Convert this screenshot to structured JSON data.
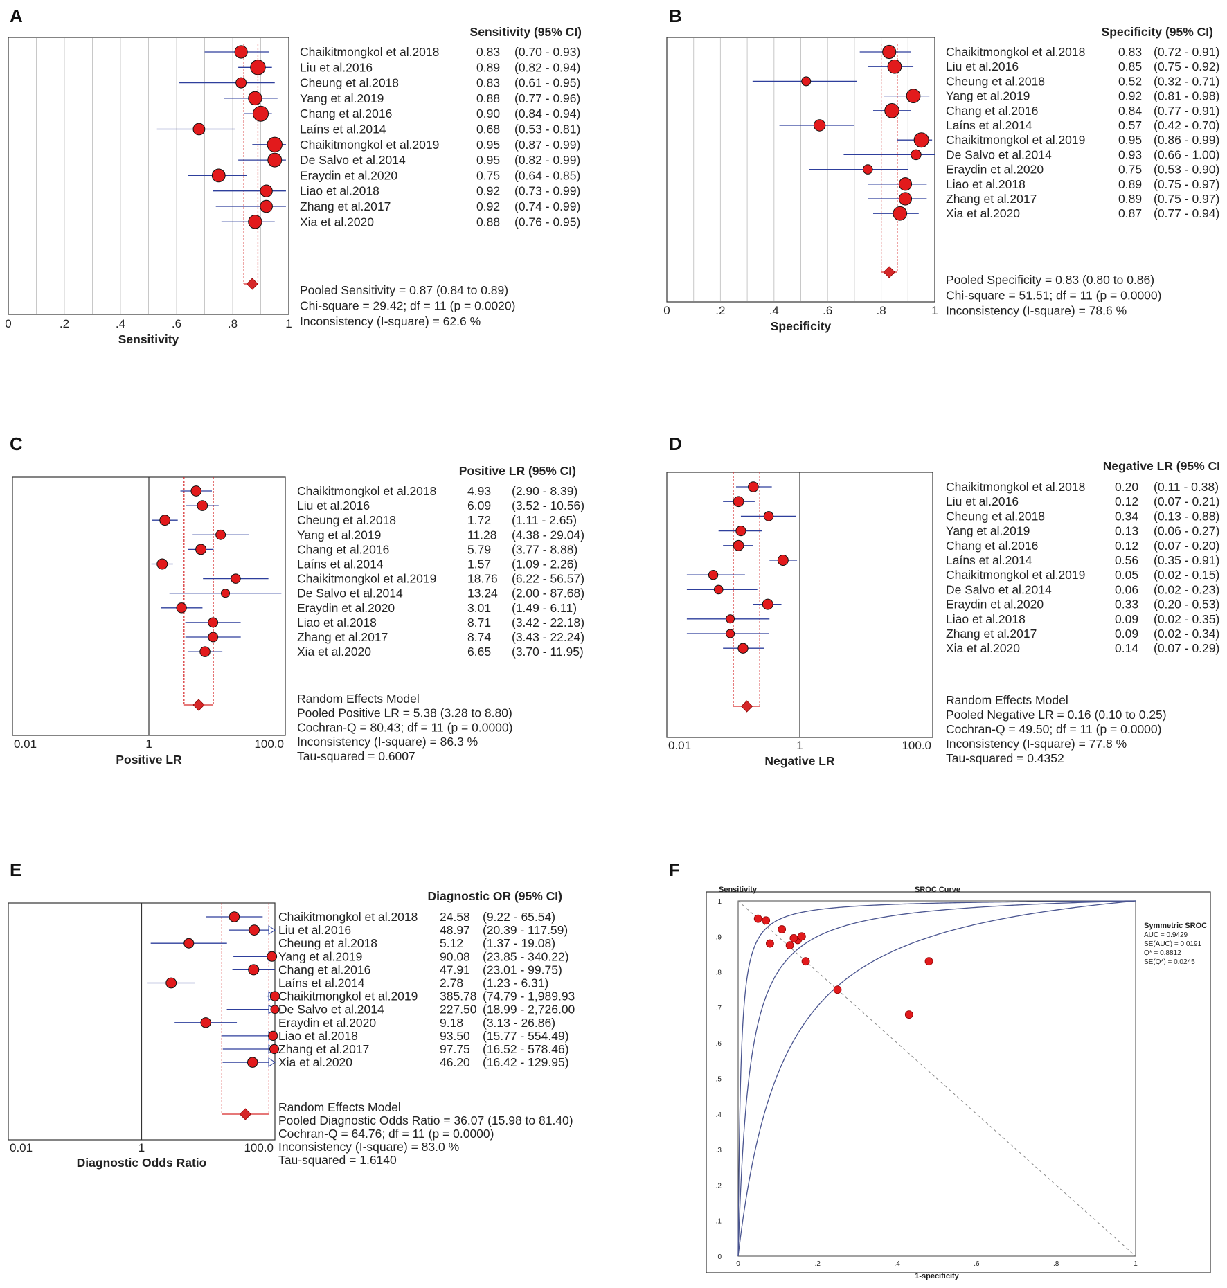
{
  "chart_data": [
    {
      "type": "forest",
      "panel": "A",
      "scale": "linear",
      "xlim": [
        0,
        1
      ],
      "ticks": [
        {
          "v": 0,
          "label": "0"
        },
        {
          "v": 0.2,
          "label": ".2"
        },
        {
          "v": 0.4,
          "label": ".4"
        },
        {
          "v": 0.6,
          "label": ".6"
        },
        {
          "v": 0.8,
          "label": ".8"
        },
        {
          "v": 1,
          "label": "1"
        }
      ],
      "header": "Sensitivity (95% CI)",
      "xlabel": "Sensitivity",
      "studies": [
        {
          "name": "Chaikitmongkol et al.2018",
          "est": 0.83,
          "lo": 0.7,
          "hi": 0.93,
          "est_text": "0.83",
          "ci_text": "(0.70 - 0.93)"
        },
        {
          "name": "Liu et al.2016",
          "est": 0.89,
          "lo": 0.82,
          "hi": 0.94,
          "est_text": "0.89",
          "ci_text": "(0.82 - 0.94)"
        },
        {
          "name": "Cheung et al.2018",
          "est": 0.83,
          "lo": 0.61,
          "hi": 0.95,
          "est_text": "0.83",
          "ci_text": "(0.61 - 0.95)"
        },
        {
          "name": "Yang et al.2019",
          "est": 0.88,
          "lo": 0.77,
          "hi": 0.96,
          "est_text": "0.88",
          "ci_text": "(0.77 - 0.96)"
        },
        {
          "name": "Chang et al.2016",
          "est": 0.9,
          "lo": 0.84,
          "hi": 0.94,
          "est_text": "0.90",
          "ci_text": "(0.84 - 0.94)"
        },
        {
          "name": "Laíns et al.2014",
          "est": 0.68,
          "lo": 0.53,
          "hi": 0.81,
          "est_text": "0.68",
          "ci_text": "(0.53 - 0.81)"
        },
        {
          "name": "Chaikitmongkol et al.2019",
          "est": 0.95,
          "lo": 0.87,
          "hi": 0.99,
          "est_text": "0.95",
          "ci_text": "(0.87 - 0.99)"
        },
        {
          "name": "De Salvo et al.2014",
          "est": 0.95,
          "lo": 0.82,
          "hi": 0.99,
          "est_text": "0.95",
          "ci_text": "(0.82 - 0.99)"
        },
        {
          "name": "Eraydin et al.2020",
          "est": 0.75,
          "lo": 0.64,
          "hi": 0.85,
          "est_text": "0.75",
          "ci_text": "(0.64 - 0.85)"
        },
        {
          "name": "Liao et al.2018",
          "est": 0.92,
          "lo": 0.73,
          "hi": 0.99,
          "est_text": "0.92",
          "ci_text": "(0.73 - 0.99)"
        },
        {
          "name": "Zhang et al.2017",
          "est": 0.92,
          "lo": 0.74,
          "hi": 0.99,
          "est_text": "0.92",
          "ci_text": "(0.74 - 0.99)"
        },
        {
          "name": "Xia et al.2020",
          "est": 0.88,
          "lo": 0.76,
          "hi": 0.95,
          "est_text": "0.88",
          "ci_text": "(0.76 - 0.95)"
        }
      ],
      "pooled": {
        "est": 0.87,
        "lo": 0.84,
        "hi": 0.89
      },
      "summary": [
        "Pooled Sensitivity = 0.87 (0.84 to 0.89)",
        "Chi-square = 29.42; df =  11 (p = 0.0020)",
        "Inconsistency (I-square) = 62.6 %"
      ]
    },
    {
      "type": "forest",
      "panel": "B",
      "scale": "linear",
      "xlim": [
        0,
        1
      ],
      "ticks": [
        {
          "v": 0,
          "label": "0"
        },
        {
          "v": 0.2,
          "label": ".2"
        },
        {
          "v": 0.4,
          "label": ".4"
        },
        {
          "v": 0.6,
          "label": ".6"
        },
        {
          "v": 0.8,
          "label": ".8"
        },
        {
          "v": 1,
          "label": "1"
        }
      ],
      "header": "Specificity (95% CI)",
      "xlabel": "Specificity",
      "studies": [
        {
          "name": "Chaikitmongkol et al.2018",
          "est": 0.83,
          "lo": 0.72,
          "hi": 0.91,
          "est_text": "0.83",
          "ci_text": "(0.72 - 0.91)"
        },
        {
          "name": "Liu et al.2016",
          "est": 0.85,
          "lo": 0.75,
          "hi": 0.92,
          "est_text": "0.85",
          "ci_text": "(0.75 - 0.92)"
        },
        {
          "name": "Cheung et al.2018",
          "est": 0.52,
          "lo": 0.32,
          "hi": 0.71,
          "est_text": "0.52",
          "ci_text": "(0.32 - 0.71)"
        },
        {
          "name": "Yang et al.2019",
          "est": 0.92,
          "lo": 0.81,
          "hi": 0.98,
          "est_text": "0.92",
          "ci_text": "(0.81 - 0.98)"
        },
        {
          "name": "Chang et al.2016",
          "est": 0.84,
          "lo": 0.77,
          "hi": 0.91,
          "est_text": "0.84",
          "ci_text": "(0.77 - 0.91)"
        },
        {
          "name": "Laíns et al.2014",
          "est": 0.57,
          "lo": 0.42,
          "hi": 0.7,
          "est_text": "0.57",
          "ci_text": "(0.42 - 0.70)"
        },
        {
          "name": "Chaikitmongkol et al.2019",
          "est": 0.95,
          "lo": 0.86,
          "hi": 0.99,
          "est_text": "0.95",
          "ci_text": "(0.86 - 0.99)"
        },
        {
          "name": "De Salvo et al.2014",
          "est": 0.93,
          "lo": 0.66,
          "hi": 1.0,
          "est_text": "0.93",
          "ci_text": "(0.66 - 1.00)"
        },
        {
          "name": "Eraydin et al.2020",
          "est": 0.75,
          "lo": 0.53,
          "hi": 0.9,
          "est_text": "0.75",
          "ci_text": "(0.53 - 0.90)"
        },
        {
          "name": "Liao et al.2018",
          "est": 0.89,
          "lo": 0.75,
          "hi": 0.97,
          "est_text": "0.89",
          "ci_text": "(0.75 - 0.97)"
        },
        {
          "name": "Zhang et al.2017",
          "est": 0.89,
          "lo": 0.75,
          "hi": 0.97,
          "est_text": "0.89",
          "ci_text": "(0.75 - 0.97)"
        },
        {
          "name": "Xia et al.2020",
          "est": 0.87,
          "lo": 0.77,
          "hi": 0.94,
          "est_text": "0.87",
          "ci_text": "(0.77 - 0.94)"
        }
      ],
      "pooled": {
        "est": 0.83,
        "lo": 0.8,
        "hi": 0.86
      },
      "summary": [
        "Pooled Specificity = 0.83 (0.80 to 0.86)",
        "Chi-square = 51.51; df =  11 (p = 0.0000)",
        "Inconsistency (I-square) = 78.6 %"
      ]
    },
    {
      "type": "forest",
      "panel": "C",
      "scale": "log",
      "xlim": [
        0.01,
        100
      ],
      "ticks": [
        {
          "v": 0.01,
          "label": "0.01"
        },
        {
          "v": 1,
          "label": "1"
        },
        {
          "v": 100,
          "label": "100.0"
        }
      ],
      "header": "Positive LR (95% CI)",
      "xlabel": "Positive LR",
      "studies": [
        {
          "name": "Chaikitmongkol et al.2018",
          "est": 4.93,
          "lo": 2.9,
          "hi": 8.39,
          "est_text": "4.93",
          "ci_text": "(2.90 - 8.39)"
        },
        {
          "name": "Liu et al.2016",
          "est": 6.09,
          "lo": 3.52,
          "hi": 10.56,
          "est_text": "6.09",
          "ci_text": "(3.52 - 10.56)"
        },
        {
          "name": "Cheung et al.2018",
          "est": 1.72,
          "lo": 1.11,
          "hi": 2.65,
          "est_text": "1.72",
          "ci_text": "(1.11 - 2.65)"
        },
        {
          "name": "Yang et al.2019",
          "est": 11.28,
          "lo": 4.38,
          "hi": 29.04,
          "est_text": "11.28",
          "ci_text": "(4.38 - 29.04)"
        },
        {
          "name": "Chang et al.2016",
          "est": 5.79,
          "lo": 3.77,
          "hi": 8.88,
          "est_text": "5.79",
          "ci_text": "(3.77 - 8.88)"
        },
        {
          "name": "Laíns et al.2014",
          "est": 1.57,
          "lo": 1.09,
          "hi": 2.26,
          "est_text": "1.57",
          "ci_text": "(1.09 - 2.26)"
        },
        {
          "name": "Chaikitmongkol et al.2019",
          "est": 18.76,
          "lo": 6.22,
          "hi": 56.57,
          "est_text": "18.76",
          "ci_text": "(6.22 - 56.57)"
        },
        {
          "name": "De Salvo et al.2014",
          "est": 13.24,
          "lo": 2.0,
          "hi": 87.68,
          "est_text": "13.24",
          "ci_text": "(2.00 - 87.68)"
        },
        {
          "name": "Eraydin et al.2020",
          "est": 3.01,
          "lo": 1.49,
          "hi": 6.11,
          "est_text": "3.01",
          "ci_text": "(1.49 - 6.11)"
        },
        {
          "name": "Liao et al.2018",
          "est": 8.71,
          "lo": 3.42,
          "hi": 22.18,
          "est_text": "8.71",
          "ci_text": "(3.42 - 22.18)"
        },
        {
          "name": "Zhang et al.2017",
          "est": 8.74,
          "lo": 3.43,
          "hi": 22.24,
          "est_text": "8.74",
          "ci_text": "(3.43 - 22.24)"
        },
        {
          "name": "Xia et al.2020",
          "est": 6.65,
          "lo": 3.7,
          "hi": 11.95,
          "est_text": "6.65",
          "ci_text": "(3.70 - 11.95)"
        }
      ],
      "pooled": {
        "est": 5.38,
        "lo": 3.28,
        "hi": 8.8
      },
      "summary": [
        "Random Effects Model",
        "Pooled Positive LR = 5.38 (3.28 to 8.80)",
        "Cochran-Q = 80.43; df =  11 (p = 0.0000)",
        "Inconsistency (I-square) = 86.3 %",
        "Tau-squared = 0.6007"
      ]
    },
    {
      "type": "forest",
      "panel": "D",
      "scale": "log",
      "xlim": [
        0.01,
        100
      ],
      "ticks": [
        {
          "v": 0.01,
          "label": "0.01"
        },
        {
          "v": 1,
          "label": "1"
        },
        {
          "v": 100,
          "label": "100.0"
        }
      ],
      "header": "Negative LR (95% CI",
      "xlabel": "Negative LR",
      "studies": [
        {
          "name": "Chaikitmongkol et al.2018",
          "est": 0.2,
          "lo": 0.11,
          "hi": 0.38,
          "est_text": "0.20",
          "ci_text": "(0.11 - 0.38)"
        },
        {
          "name": "Liu et al.2016",
          "est": 0.12,
          "lo": 0.07,
          "hi": 0.21,
          "est_text": "0.12",
          "ci_text": "(0.07 - 0.21)"
        },
        {
          "name": "Cheung et al.2018",
          "est": 0.34,
          "lo": 0.13,
          "hi": 0.88,
          "est_text": "0.34",
          "ci_text": "(0.13 - 0.88)"
        },
        {
          "name": "Yang et al.2019",
          "est": 0.13,
          "lo": 0.06,
          "hi": 0.27,
          "est_text": "0.13",
          "ci_text": "(0.06 - 0.27)"
        },
        {
          "name": "Chang et al.2016",
          "est": 0.12,
          "lo": 0.07,
          "hi": 0.2,
          "est_text": "0.12",
          "ci_text": "(0.07 - 0.20)"
        },
        {
          "name": "Laíns et al.2014",
          "est": 0.56,
          "lo": 0.35,
          "hi": 0.91,
          "est_text": "0.56",
          "ci_text": "(0.35 - 0.91)"
        },
        {
          "name": "Chaikitmongkol et al.2019",
          "est": 0.05,
          "lo": 0.02,
          "hi": 0.15,
          "est_text": "0.05",
          "ci_text": "(0.02 - 0.15)"
        },
        {
          "name": "De Salvo et al.2014",
          "est": 0.06,
          "lo": 0.02,
          "hi": 0.23,
          "est_text": "0.06",
          "ci_text": "(0.02 - 0.23)"
        },
        {
          "name": "Eraydin et al.2020",
          "est": 0.33,
          "lo": 0.2,
          "hi": 0.53,
          "est_text": "0.33",
          "ci_text": "(0.20 - 0.53)"
        },
        {
          "name": "Liao et al.2018",
          "est": 0.09,
          "lo": 0.02,
          "hi": 0.35,
          "est_text": "0.09",
          "ci_text": "(0.02 - 0.35)"
        },
        {
          "name": "Zhang et al.2017",
          "est": 0.09,
          "lo": 0.02,
          "hi": 0.34,
          "est_text": "0.09",
          "ci_text": "(0.02 - 0.34)"
        },
        {
          "name": "Xia et al.2020",
          "est": 0.14,
          "lo": 0.07,
          "hi": 0.29,
          "est_text": "0.14",
          "ci_text": "(0.07 - 0.29)"
        }
      ],
      "pooled": {
        "est": 0.16,
        "lo": 0.1,
        "hi": 0.25
      },
      "summary": [
        "Random Effects Model",
        "Pooled Negative LR = 0.16 (0.10 to 0.25)",
        "Cochran-Q = 49.50; df =  11 (p = 0.0000)",
        "Inconsistency (I-square) = 77.8 %",
        "Tau-squared = 0.4352"
      ]
    },
    {
      "type": "forest",
      "panel": "E",
      "scale": "log",
      "xlim": [
        0.01,
        100
      ],
      "ticks": [
        {
          "v": 0.01,
          "label": "0.01"
        },
        {
          "v": 1,
          "label": "1"
        },
        {
          "v": 100,
          "label": "100.0"
        }
      ],
      "header": "Diagnostic OR (95% CI)",
      "xlabel": "Diagnostic Odds Ratio",
      "studies": [
        {
          "name": "Chaikitmongkol et al.2018",
          "est": 24.58,
          "lo": 9.22,
          "hi": 65.54,
          "est_text": "24.58",
          "ci_text": "(9.22 - 65.54)"
        },
        {
          "name": "Liu et al.2016",
          "est": 48.97,
          "lo": 20.39,
          "hi": 117.59,
          "est_text": "48.97",
          "ci_text": "(20.39 - 117.59)"
        },
        {
          "name": "Cheung et al.2018",
          "est": 5.12,
          "lo": 1.37,
          "hi": 19.08,
          "est_text": "5.12",
          "ci_text": "(1.37 - 19.08)"
        },
        {
          "name": "Yang et al.2019",
          "est": 90.08,
          "lo": 23.85,
          "hi": 340.22,
          "est_text": "90.08",
          "ci_text": "(23.85 - 340.22)"
        },
        {
          "name": "Chang et al.2016",
          "est": 47.91,
          "lo": 23.01,
          "hi": 99.75,
          "est_text": "47.91",
          "ci_text": "(23.01 - 99.75)"
        },
        {
          "name": "Laíns et al.2014",
          "est": 2.78,
          "lo": 1.23,
          "hi": 6.31,
          "est_text": "2.78",
          "ci_text": "(1.23 - 6.31)"
        },
        {
          "name": "Chaikitmongkol et al.2019",
          "est": 385.78,
          "lo": 74.79,
          "hi": 1989.93,
          "est_text": "385.78",
          "ci_text": "(74.79 - 1,989.93"
        },
        {
          "name": "De Salvo et al.2014",
          "est": 227.5,
          "lo": 18.99,
          "hi": 2726.0,
          "est_text": "227.50",
          "ci_text": "(18.99 - 2,726.00"
        },
        {
          "name": "Eraydin et al.2020",
          "est": 9.18,
          "lo": 3.13,
          "hi": 26.86,
          "est_text": "9.18",
          "ci_text": "(3.13 - 26.86)"
        },
        {
          "name": "Liao et al.2018",
          "est": 93.5,
          "lo": 15.77,
          "hi": 554.49,
          "est_text": "93.50",
          "ci_text": "(15.77 - 554.49)"
        },
        {
          "name": "Zhang et al.2017",
          "est": 97.75,
          "lo": 16.52,
          "hi": 578.46,
          "est_text": "97.75",
          "ci_text": "(16.52 - 578.46)"
        },
        {
          "name": "Xia et al.2020",
          "est": 46.2,
          "lo": 16.42,
          "hi": 129.95,
          "est_text": "46.20",
          "ci_text": "(16.42 - 129.95)"
        }
      ],
      "pooled": {
        "est": 36.07,
        "lo": 15.98,
        "hi": 81.4
      },
      "summary": [
        "Random Effects Model",
        "Pooled Diagnostic Odds Ratio = 36.07 (15.98 to 81.40)",
        "Cochran-Q = 64.76; df =  11 (p = 0.0000)",
        "Inconsistency (I-square) = 83.0 %",
        "Tau-squared = 1.6140"
      ]
    },
    {
      "type": "scatter",
      "panel": "F",
      "title": "SROC Curve",
      "ylabel": "Sensitivity",
      "xlabel": "1-specificity",
      "xlim": [
        0,
        1
      ],
      "ylim": [
        0,
        1
      ],
      "xticks": [
        {
          "v": 0,
          "label": "0"
        },
        {
          "v": 0.2,
          "label": ".2"
        },
        {
          "v": 0.4,
          "label": ".4"
        },
        {
          "v": 0.6,
          "label": ".6"
        },
        {
          "v": 0.8,
          "label": ".8"
        },
        {
          "v": 1,
          "label": "1"
        }
      ],
      "yticks": [
        {
          "v": 0,
          "label": "0"
        },
        {
          "v": 0.1,
          "label": ".1"
        },
        {
          "v": 0.2,
          "label": ".2"
        },
        {
          "v": 0.3,
          "label": ".3"
        },
        {
          "v": 0.4,
          "label": ".4"
        },
        {
          "v": 0.5,
          "label": ".5"
        },
        {
          "v": 0.6,
          "label": ".6"
        },
        {
          "v": 0.7,
          "label": ".7"
        },
        {
          "v": 0.8,
          "label": ".8"
        },
        {
          "v": 0.9,
          "label": ".9"
        },
        {
          "v": 1,
          "label": "1"
        }
      ],
      "points": [
        {
          "x": 0.17,
          "y": 0.83
        },
        {
          "x": 0.15,
          "y": 0.89
        },
        {
          "x": 0.48,
          "y": 0.83
        },
        {
          "x": 0.08,
          "y": 0.88
        },
        {
          "x": 0.16,
          "y": 0.9
        },
        {
          "x": 0.43,
          "y": 0.68
        },
        {
          "x": 0.05,
          "y": 0.95
        },
        {
          "x": 0.07,
          "y": 0.945
        },
        {
          "x": 0.25,
          "y": 0.75
        },
        {
          "x": 0.11,
          "y": 0.92
        },
        {
          "x": 0.13,
          "y": 0.875
        },
        {
          "x": 0.14,
          "y": 0.895
        }
      ],
      "curves": [
        {
          "name": "SROC",
          "dor": 36.07
        },
        {
          "name": "upper bound",
          "dor": 158
        },
        {
          "name": "lower bound",
          "dor": 9.5
        }
      ],
      "legend": {
        "title": "Symmetric SROC",
        "lines": [
          "AUC = 0.9429",
          "SE(AUC) = 0.0191",
          "Q* = 0.8812",
          "SE(Q*) = 0.0245"
        ]
      }
    }
  ],
  "panel_letters": [
    "A",
    "B",
    "C",
    "D",
    "E",
    "F"
  ],
  "colors": {
    "marker": "#e21a1c",
    "marker_stroke": "#111111",
    "ci_line": "#2e3f9c",
    "pooled_line": "#d62728",
    "grid": "#c8c8c8",
    "curve": "#4a5590"
  }
}
